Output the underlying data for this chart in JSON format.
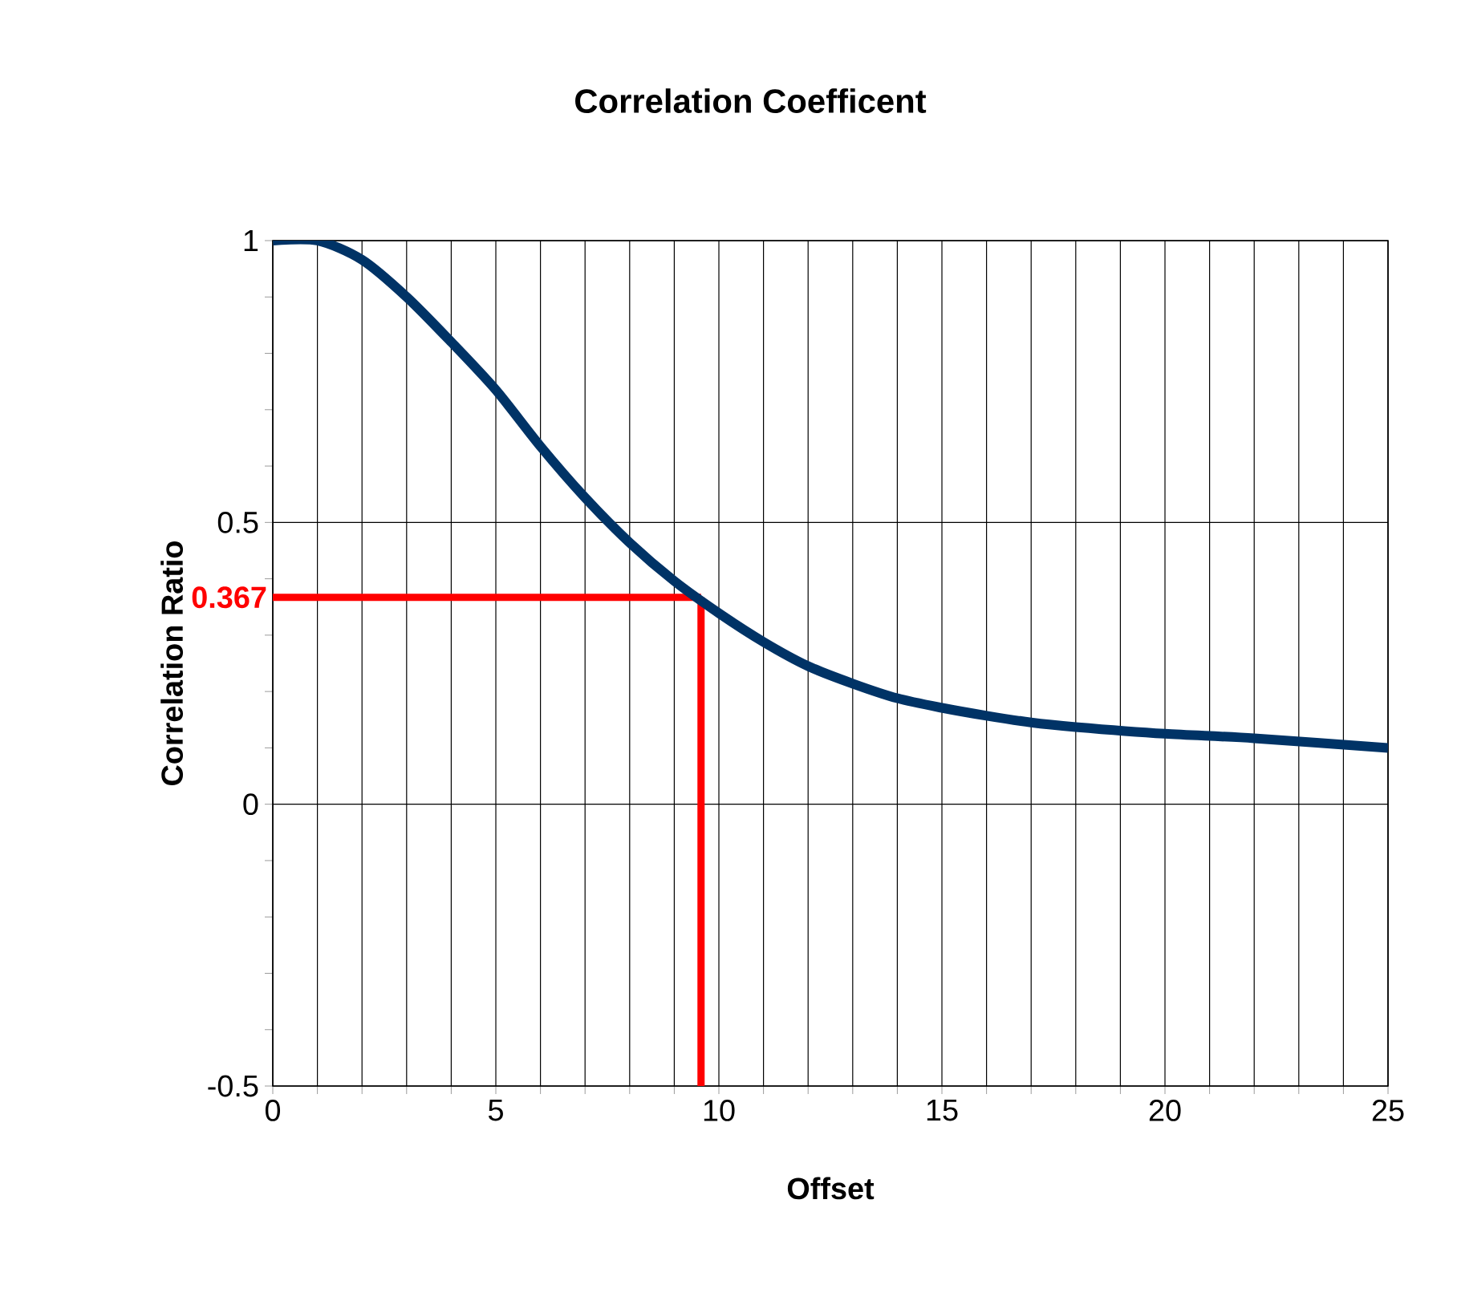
{
  "chart_data": {
    "type": "line",
    "title": "Correlation Coefficent",
    "xlabel": "Offset",
    "ylabel": "Correlation Ratio",
    "x": [
      0,
      1,
      2,
      3,
      4,
      5,
      6,
      7,
      8,
      9,
      10,
      11,
      12,
      13,
      14,
      15,
      16,
      17,
      18,
      20,
      22,
      25
    ],
    "series": [
      {
        "color": "#003366",
        "values": [
          1.0,
          1.0,
          0.966,
          0.9,
          0.82,
          0.735,
          0.635,
          0.544,
          0.464,
          0.396,
          0.339,
          0.288,
          0.245,
          0.214,
          0.188,
          0.171,
          0.157,
          0.145,
          0.137,
          0.125,
          0.117,
          0.1
        ]
      }
    ],
    "xlim": [
      0,
      25
    ],
    "ylim": [
      -0.5,
      1
    ],
    "xticks": [
      0,
      5,
      10,
      15,
      20,
      25
    ],
    "yticks": [
      -0.5,
      0,
      0.5,
      1
    ],
    "grid": true,
    "marker": "none",
    "line_style": "solid",
    "ref_lines": [
      {
        "axis": "y",
        "value": 0.367,
        "label": "0.367",
        "color": "#ff0000"
      },
      {
        "axis": "x",
        "value": 9.6,
        "color": "#ff0000"
      }
    ]
  }
}
